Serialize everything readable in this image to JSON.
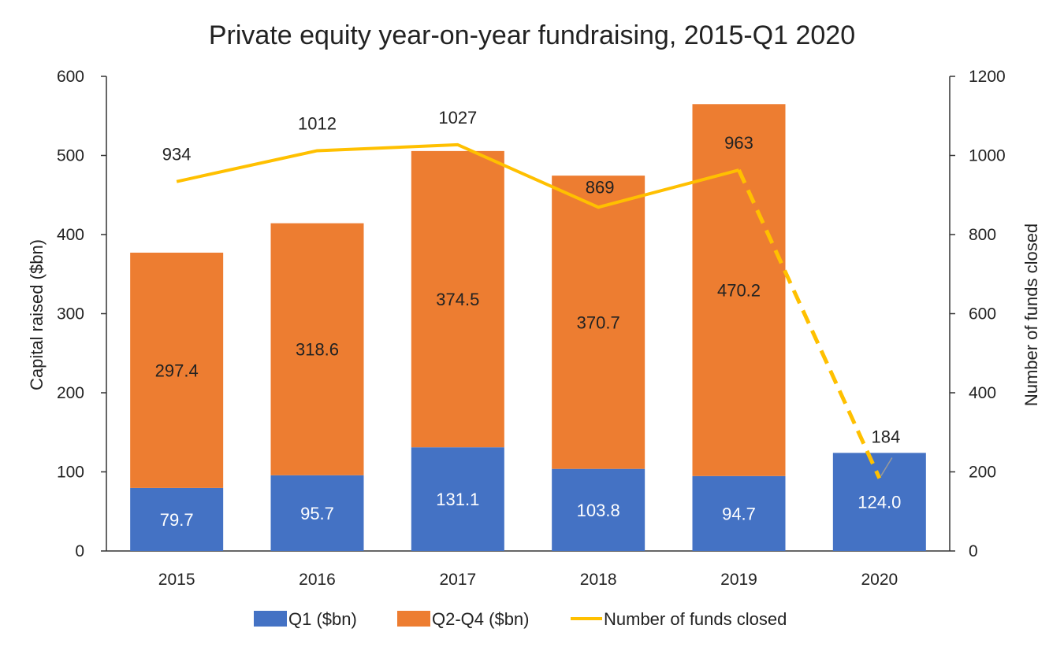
{
  "chart_data": {
    "type": "bar",
    "stacked": true,
    "title": "Private equity year-on-year fundraising, 2015-Q1 2020",
    "categories": [
      "2015",
      "2016",
      "2017",
      "2018",
      "2019",
      "2020"
    ],
    "series": [
      {
        "name": "Q1 ($bn)",
        "values": [
          79.7,
          95.7,
          131.1,
          103.8,
          94.7,
          124.0
        ],
        "labels": [
          "79.7",
          "95.7",
          "131.1",
          "103.8",
          "94.7",
          "124.0"
        ],
        "color": "#4472C4",
        "axis": "left"
      },
      {
        "name": "Q2-Q4 ($bn)",
        "values": [
          297.4,
          318.6,
          374.5,
          370.7,
          470.2,
          null
        ],
        "labels": [
          "297.4",
          "318.6",
          "374.5",
          "370.7",
          "470.2",
          ""
        ],
        "color": "#ED7D31",
        "axis": "left"
      }
    ],
    "line_series": {
      "name": "Number of funds closed",
      "type": "line",
      "values": [
        934,
        1012,
        1027,
        869,
        963,
        184
      ],
      "labels": [
        "934",
        "1012",
        "1027",
        "869",
        "963",
        "184"
      ],
      "color": "#FFC000",
      "axis": "right",
      "dashed_last_segment": true
    },
    "ylabel": "Capital raised ($bn)",
    "y2label": "Number of funds closed",
    "ylim": [
      0,
      600
    ],
    "y2lim": [
      0,
      1200
    ],
    "yticks": [
      "0",
      "100",
      "200",
      "300",
      "400",
      "500",
      "600"
    ],
    "y2ticks": [
      "0",
      "200",
      "400",
      "600",
      "800",
      "1000",
      "1200"
    ],
    "grid": false,
    "legend_position": "bottom"
  }
}
